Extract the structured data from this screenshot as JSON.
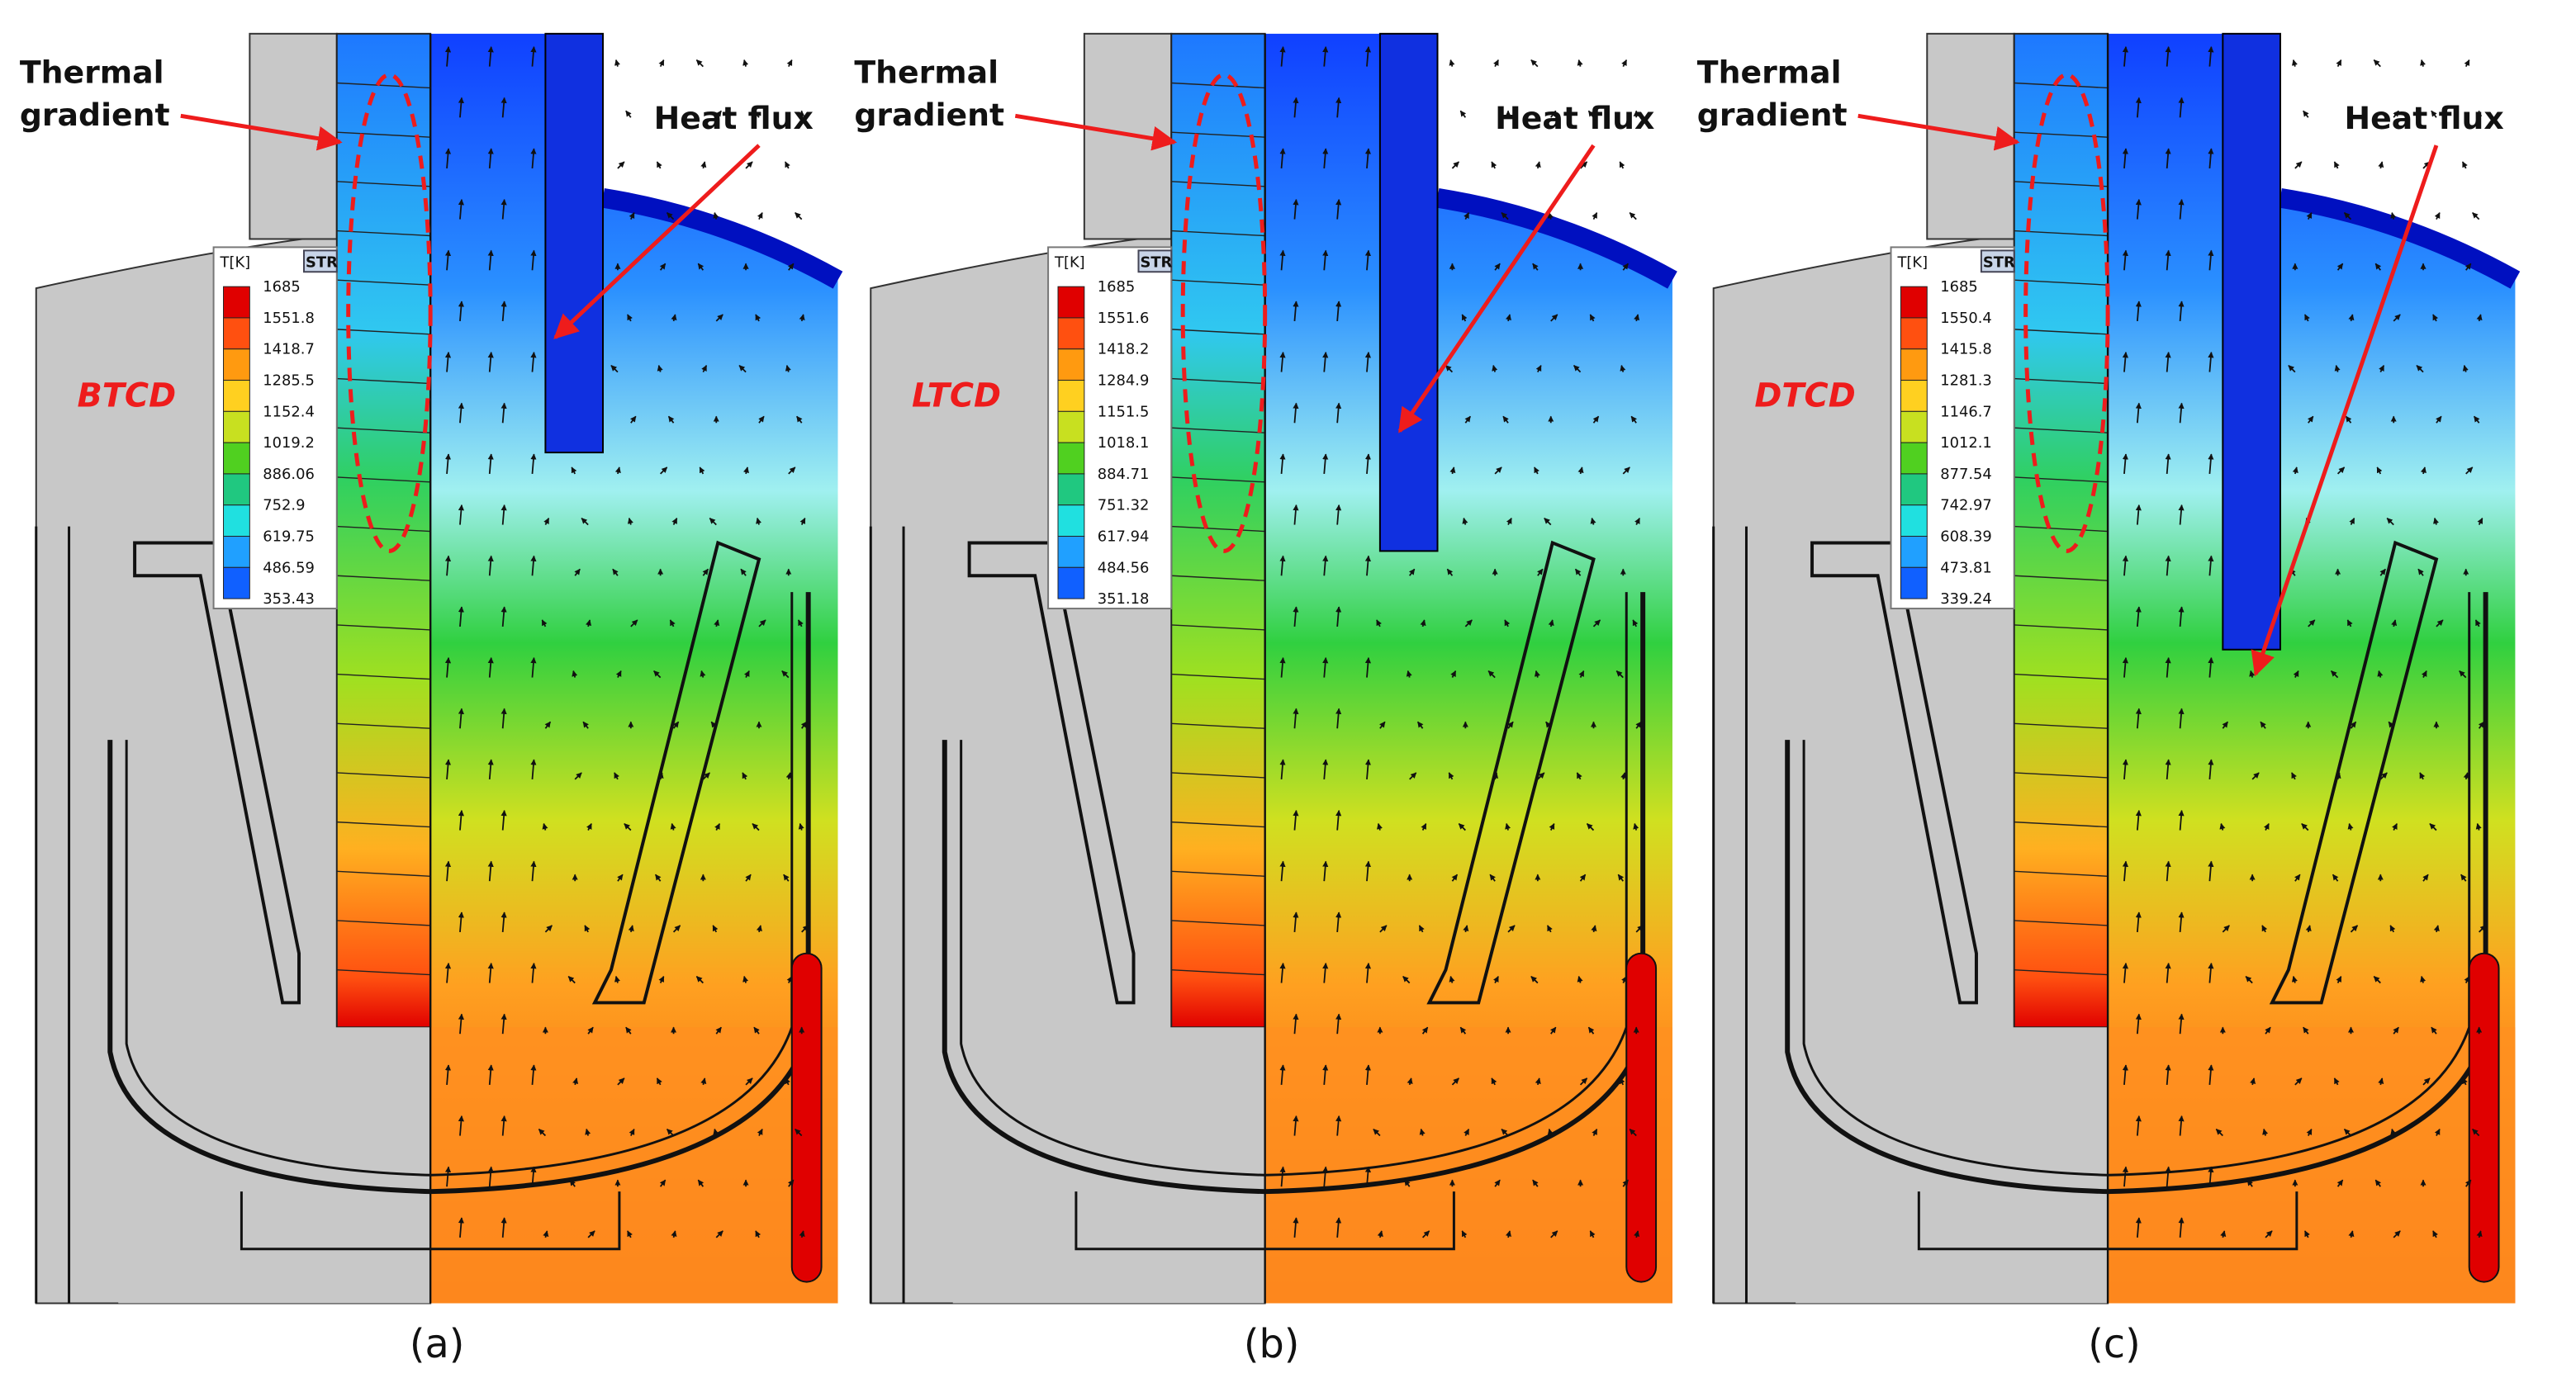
{
  "panels": [
    {
      "case": "BTCD",
      "caption": "(a)",
      "thermal_gradient": [
        "Thermal",
        "gradient"
      ],
      "heat_flux": "Heat flux",
      "legend": {
        "title": "T[K]",
        "badge": "STR",
        "levels": [
          1685,
          1551.8,
          1418.7,
          1285.5,
          1152.4,
          1019.2,
          886.06,
          752.9,
          619.75,
          486.59,
          353.43
        ]
      }
    },
    {
      "case": "LTCD",
      "caption": "(b)",
      "thermal_gradient": [
        "Thermal",
        "gradient"
      ],
      "heat_flux": "Heat flux",
      "legend": {
        "title": "T[K]",
        "badge": "STR",
        "levels": [
          1685,
          1551.6,
          1418.2,
          1284.9,
          1151.5,
          1018.1,
          884.71,
          751.32,
          617.94,
          484.56,
          351.18
        ]
      }
    },
    {
      "case": "DTCD",
      "caption": "(c)",
      "thermal_gradient": [
        "Thermal",
        "gradient"
      ],
      "heat_flux": "Heat flux",
      "legend": {
        "title": "T[K]",
        "badge": "STR",
        "levels": [
          1685,
          1550.4,
          1415.8,
          1281.3,
          1146.7,
          1012.1,
          877.54,
          742.97,
          608.39,
          473.81,
          339.24
        ]
      }
    }
  ]
}
